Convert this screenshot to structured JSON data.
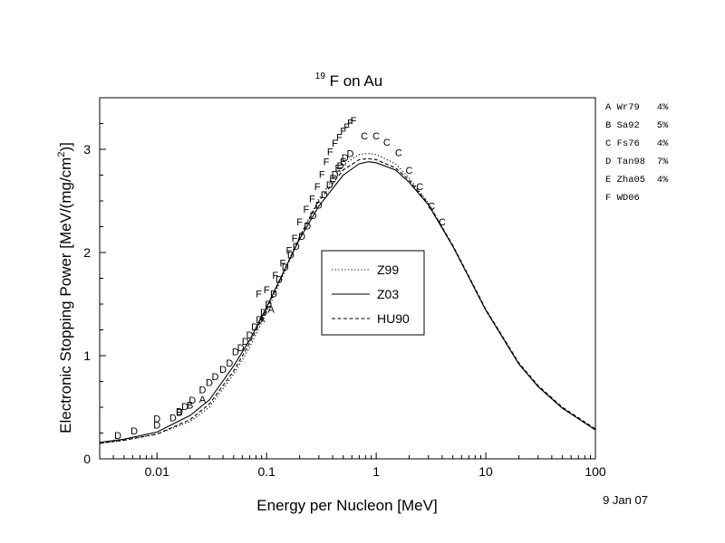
{
  "chart_data": {
    "type": "scatter",
    "title_sup": "19",
    "title_main": "F on Au",
    "xlabel": "Energy per Nucleon [MeV]",
    "ylabel_main": "Electronic Stopping Power [MeV/(mg/cm",
    "ylabel_sup": "2",
    "ylabel_end": ")]",
    "x_scale": "log",
    "xlim": [
      0.003,
      100
    ],
    "ylim": [
      0,
      3.5
    ],
    "x_ticks": [
      {
        "value": 0.01,
        "label": "0.01"
      },
      {
        "value": 0.1,
        "label": "0.1"
      },
      {
        "value": 1,
        "label": "1"
      },
      {
        "value": 10,
        "label": "10"
      },
      {
        "value": 100,
        "label": "100"
      }
    ],
    "y_ticks": [
      {
        "value": 0,
        "label": "0"
      },
      {
        "value": 1,
        "label": "1"
      },
      {
        "value": 2,
        "label": "2"
      },
      {
        "value": 3,
        "label": "3"
      }
    ],
    "date": "9 Jan 07",
    "legend_position": "center",
    "curves": [
      {
        "name": "Z99",
        "style": "dotted",
        "points": [
          [
            0.003,
            0.15
          ],
          [
            0.005,
            0.18
          ],
          [
            0.01,
            0.24
          ],
          [
            0.02,
            0.36
          ],
          [
            0.03,
            0.5
          ],
          [
            0.05,
            0.82
          ],
          [
            0.07,
            1.08
          ],
          [
            0.1,
            1.42
          ],
          [
            0.15,
            1.84
          ],
          [
            0.2,
            2.15
          ],
          [
            0.3,
            2.52
          ],
          [
            0.5,
            2.85
          ],
          [
            0.7,
            2.95
          ],
          [
            0.85,
            2.96
          ],
          [
            1.0,
            2.95
          ],
          [
            1.5,
            2.86
          ],
          [
            2,
            2.72
          ],
          [
            3,
            2.48
          ],
          [
            5,
            2.06
          ],
          [
            7,
            1.76
          ],
          [
            10,
            1.44
          ],
          [
            20,
            0.92
          ],
          [
            30,
            0.7
          ],
          [
            50,
            0.49
          ],
          [
            100,
            0.28
          ]
        ]
      },
      {
        "name": "Z03",
        "style": "solid",
        "points": [
          [
            0.003,
            0.16
          ],
          [
            0.005,
            0.19
          ],
          [
            0.01,
            0.26
          ],
          [
            0.02,
            0.42
          ],
          [
            0.03,
            0.57
          ],
          [
            0.05,
            0.9
          ],
          [
            0.07,
            1.15
          ],
          [
            0.1,
            1.47
          ],
          [
            0.15,
            1.86
          ],
          [
            0.2,
            2.13
          ],
          [
            0.3,
            2.45
          ],
          [
            0.5,
            2.75
          ],
          [
            0.7,
            2.86
          ],
          [
            0.85,
            2.88
          ],
          [
            1.0,
            2.87
          ],
          [
            1.5,
            2.8
          ],
          [
            2,
            2.68
          ],
          [
            3,
            2.46
          ],
          [
            5,
            2.06
          ],
          [
            7,
            1.76
          ],
          [
            10,
            1.44
          ],
          [
            20,
            0.92
          ],
          [
            30,
            0.7
          ],
          [
            50,
            0.49
          ],
          [
            100,
            0.28
          ]
        ]
      },
      {
        "name": "HU90",
        "style": "dashed",
        "points": [
          [
            0.003,
            0.15
          ],
          [
            0.005,
            0.18
          ],
          [
            0.01,
            0.24
          ],
          [
            0.02,
            0.38
          ],
          [
            0.03,
            0.53
          ],
          [
            0.05,
            0.85
          ],
          [
            0.07,
            1.12
          ],
          [
            0.1,
            1.45
          ],
          [
            0.15,
            1.86
          ],
          [
            0.2,
            2.15
          ],
          [
            0.3,
            2.5
          ],
          [
            0.5,
            2.8
          ],
          [
            0.7,
            2.9
          ],
          [
            0.85,
            2.91
          ],
          [
            1.0,
            2.9
          ],
          [
            1.5,
            2.82
          ],
          [
            2,
            2.7
          ],
          [
            3,
            2.47
          ],
          [
            5,
            2.07
          ],
          [
            7,
            1.77
          ],
          [
            10,
            1.45
          ],
          [
            20,
            0.93
          ],
          [
            30,
            0.71
          ],
          [
            50,
            0.5
          ],
          [
            100,
            0.29
          ]
        ]
      }
    ],
    "references": [
      {
        "letter": "A",
        "text": "A Wr79   4%"
      },
      {
        "letter": "B",
        "text": "B Sa92   5%"
      },
      {
        "letter": "C",
        "text": "C Fs76   4%"
      },
      {
        "letter": "D",
        "text": "D Tan98  7%"
      },
      {
        "letter": "E",
        "text": "E Zha05  4%"
      },
      {
        "letter": "F",
        "text": "F WD06"
      }
    ],
    "points": [
      {
        "label": "D",
        "x": 0.0044,
        "y": 0.23
      },
      {
        "label": "D",
        "x": 0.0062,
        "y": 0.27
      },
      {
        "label": "D",
        "x": 0.01,
        "y": 0.33
      },
      {
        "label": "D",
        "x": 0.01,
        "y": 0.39
      },
      {
        "label": "D",
        "x": 0.014,
        "y": 0.4
      },
      {
        "label": "D",
        "x": 0.016,
        "y": 0.46
      },
      {
        "label": "D",
        "x": 0.018,
        "y": 0.51
      },
      {
        "label": "D",
        "x": 0.021,
        "y": 0.57
      },
      {
        "label": "D",
        "x": 0.026,
        "y": 0.67
      },
      {
        "label": "D",
        "x": 0.03,
        "y": 0.74
      },
      {
        "label": "D",
        "x": 0.034,
        "y": 0.8
      },
      {
        "label": "D",
        "x": 0.04,
        "y": 0.87
      },
      {
        "label": "D",
        "x": 0.046,
        "y": 0.93
      },
      {
        "label": "D",
        "x": 0.052,
        "y": 1.04
      },
      {
        "label": "D",
        "x": 0.058,
        "y": 1.08
      },
      {
        "label": "D",
        "x": 0.064,
        "y": 1.14
      },
      {
        "label": "D",
        "x": 0.07,
        "y": 1.2
      },
      {
        "label": "D",
        "x": 0.078,
        "y": 1.28
      },
      {
        "label": "D",
        "x": 0.086,
        "y": 1.35
      },
      {
        "label": "D",
        "x": 0.094,
        "y": 1.42
      },
      {
        "label": "D",
        "x": 0.104,
        "y": 1.5
      },
      {
        "label": "D",
        "x": 0.116,
        "y": 1.6
      },
      {
        "label": "D",
        "x": 0.13,
        "y": 1.74
      },
      {
        "label": "D",
        "x": 0.148,
        "y": 1.86
      },
      {
        "label": "D",
        "x": 0.166,
        "y": 1.98
      },
      {
        "label": "D",
        "x": 0.186,
        "y": 2.06
      },
      {
        "label": "D",
        "x": 0.21,
        "y": 2.16
      },
      {
        "label": "D",
        "x": 0.236,
        "y": 2.26
      },
      {
        "label": "D",
        "x": 0.266,
        "y": 2.36
      },
      {
        "label": "D",
        "x": 0.3,
        "y": 2.46
      },
      {
        "label": "D",
        "x": 0.336,
        "y": 2.56
      },
      {
        "label": "D",
        "x": 0.376,
        "y": 2.66
      },
      {
        "label": "D",
        "x": 0.42,
        "y": 2.76
      },
      {
        "label": "D",
        "x": 0.47,
        "y": 2.84
      },
      {
        "label": "D",
        "x": 0.52,
        "y": 2.92
      },
      {
        "label": "D",
        "x": 0.58,
        "y": 2.96
      },
      {
        "label": "B",
        "x": 0.016,
        "y": 0.45
      },
      {
        "label": "B",
        "x": 0.02,
        "y": 0.52
      },
      {
        "label": "A",
        "x": 0.026,
        "y": 0.58
      },
      {
        "label": "A",
        "x": 0.09,
        "y": 1.36
      },
      {
        "label": "A",
        "x": 0.11,
        "y": 1.45
      },
      {
        "label": "E",
        "x": 0.4,
        "y": 2.72
      },
      {
        "label": "E",
        "x": 0.45,
        "y": 2.82
      },
      {
        "label": "E",
        "x": 0.5,
        "y": 2.88
      },
      {
        "label": "F",
        "x": 0.085,
        "y": 1.6
      },
      {
        "label": "F",
        "x": 0.1,
        "y": 1.64
      },
      {
        "label": "F",
        "x": 0.12,
        "y": 1.78
      },
      {
        "label": "F",
        "x": 0.14,
        "y": 1.9
      },
      {
        "label": "F",
        "x": 0.16,
        "y": 2.02
      },
      {
        "label": "F",
        "x": 0.18,
        "y": 2.14
      },
      {
        "label": "F",
        "x": 0.2,
        "y": 2.3
      },
      {
        "label": "F",
        "x": 0.23,
        "y": 2.42
      },
      {
        "label": "F",
        "x": 0.26,
        "y": 2.52
      },
      {
        "label": "F",
        "x": 0.29,
        "y": 2.64
      },
      {
        "label": "F",
        "x": 0.32,
        "y": 2.76
      },
      {
        "label": "F",
        "x": 0.35,
        "y": 2.88
      },
      {
        "label": "F",
        "x": 0.38,
        "y": 2.98
      },
      {
        "label": "F",
        "x": 0.42,
        "y": 3.06
      },
      {
        "label": "F",
        "x": 0.46,
        "y": 3.12
      },
      {
        "label": "F",
        "x": 0.5,
        "y": 3.18
      },
      {
        "label": "F",
        "x": 0.54,
        "y": 3.22
      },
      {
        "label": "F",
        "x": 0.58,
        "y": 3.26
      },
      {
        "label": "F",
        "x": 0.62,
        "y": 3.28
      },
      {
        "label": "C",
        "x": 0.78,
        "y": 3.13
      },
      {
        "label": "C",
        "x": 1.0,
        "y": 3.13
      },
      {
        "label": "C",
        "x": 1.25,
        "y": 3.07
      },
      {
        "label": "C",
        "x": 1.6,
        "y": 2.97
      },
      {
        "label": "C",
        "x": 2.0,
        "y": 2.8
      },
      {
        "label": "C",
        "x": 2.5,
        "y": 2.64
      },
      {
        "label": "C",
        "x": 3.2,
        "y": 2.45
      },
      {
        "label": "C",
        "x": 4.0,
        "y": 2.3
      }
    ]
  }
}
